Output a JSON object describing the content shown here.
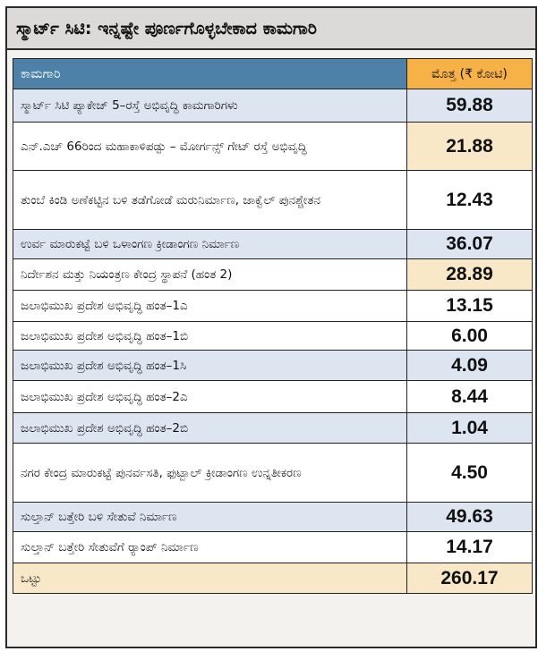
{
  "title": "ಸ್ಮಾರ್ಟ್ ಸಿಟಿ: ಇನ್ನಷ್ಟೇ ಪೂರ್ಣಗೊಳ್ಳಬೇಕಾದ ಕಾಮಗಾರಿ",
  "header": {
    "work": "ಕಾಮಗಾರಿ",
    "amount": "ಮೊತ್ತ (₹ ಕೋಟಿ)"
  },
  "rows": [
    {
      "work": "ಸ್ಮಾರ್ಟ್ ಸಿಟಿ ಪ್ಯಾಕೇಜ್ 5–ರಸ್ತೆ ಅಭಿವೃದ್ಧಿ ಕಾಮಗಾರಿಗಳು",
      "amount": "59.88"
    },
    {
      "work": "ಎನ್.ಎಚ್ 66ರಿಂದ ಮಹಾಕಾಳಿಪಡ್ಪು – ಮೋರ್ಗನ್ಸ್ ಗೇಟ್ ರಸ್ತೆ ಅಭಿವೃದ್ಧಿ",
      "amount": "21.88"
    },
    {
      "work": "ತುಂಬೆ ಕಿಂಡಿ ಅಣೆಕಟ್ಟಿನ ಬಳಿ ತಡೆಗೋಡೆ ಮರುನಿರ್ಮಾಣ, ಜಾಕ್ವೆಲ್ ಪುನಶ್ಚೇತನ",
      "amount": "12.43"
    },
    {
      "work": "ಉರ್ವ ಮಾರುಕಟ್ಟೆ ಬಳಿ ಒಳಾಂಗಣ ಕ್ರೀಡಾಂಗಣ ನಿರ್ಮಾಣ",
      "amount": "36.07"
    },
    {
      "work": "ನಿರ್ದೇಶನ ಮತ್ತು ನಿಯಂತ್ರಣ ಕೇಂದ್ರ ಸ್ಥಾಪನೆ (ಹಂತ 2)",
      "amount": "28.89"
    },
    {
      "work": "ಜಲಾಭಿಮುಖ ಪ್ರದೇಶ ಅಭಿವೃದ್ಧಿ ಹಂತ–1ಎ",
      "amount": "13.15"
    },
    {
      "work": "ಜಲಾಭಿಮುಖ ಪ್ರದೇಶ ಅಭಿವೃದ್ಧಿ ಹಂತ–1ಬಿ",
      "amount": "6.00"
    },
    {
      "work": "ಜಲಾಭಿಮುಖ ಪ್ರದೇಶ ಅಭಿವೃದ್ಧಿ ಹಂತ–1ಸಿ",
      "amount": "4.09"
    },
    {
      "work": "ಜಲಾಭಿಮುಖ ಪ್ರದೇಶ ಅಭಿವೃದ್ಧಿ ಹಂತ–2ಎ",
      "amount": "8.44"
    },
    {
      "work": "ಜಲಾಭಿಮುಖ ಪ್ರದೇಶ ಅಭಿವೃದ್ಧಿ ಹಂತ–2ಬಿ",
      "amount": "1.04"
    },
    {
      "work": "ನಗರ ಕೇಂದ್ರ ಮಾರುಕಟ್ಟೆ ಪುನರ್ವಸತಿ, ಫುಟ್ಬಾಲ್ ಕ್ರೀಡಾಂಗಣ ಉನ್ನತೀಕರಣ",
      "amount": "4.50"
    },
    {
      "work": "ಸುಲ್ತಾನ್ ಬತ್ತೇರಿ ಬಳಿ ಸೇತುವೆ ನಿರ್ಮಾಣ",
      "amount": "49.63"
    },
    {
      "work": "ಸುಲ್ತಾನ್ ಬತ್ತೇರಿ ಸೇತುವೆಗೆ ರ್‍ಯಾಂಪ್ ನಿರ್ಮಾಣ",
      "amount": "14.17"
    }
  ],
  "total": {
    "label": "ಒಟ್ಟು",
    "amount": "260.17"
  }
}
